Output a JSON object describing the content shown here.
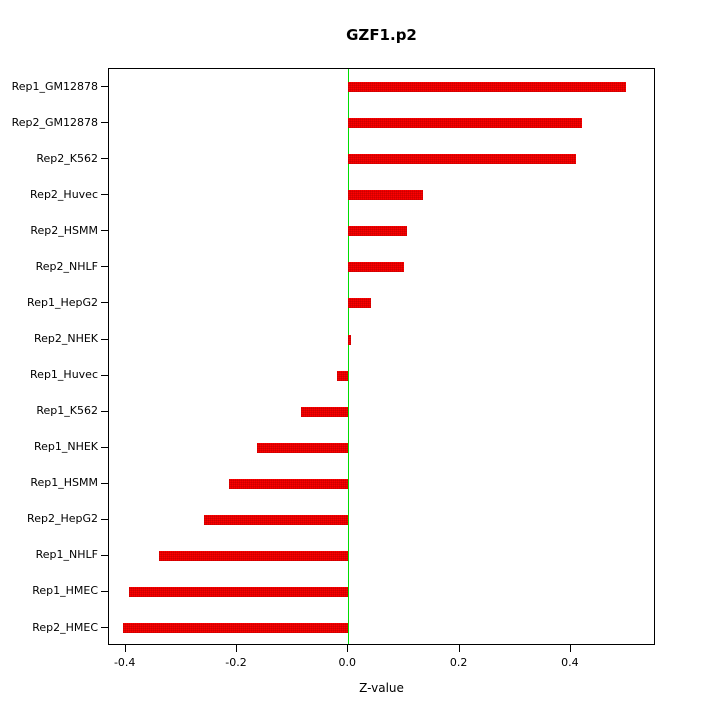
{
  "chart_data": {
    "type": "bar",
    "orientation": "horizontal",
    "title": "GZF1.p2",
    "xlabel": "Z-value",
    "ylabel": "",
    "categories": [
      "Rep1_GM12878",
      "Rep2_GM12878",
      "Rep2_K562",
      "Rep2_Huvec",
      "Rep2_HSMM",
      "Rep2_NHLF",
      "Rep1_HepG2",
      "Rep2_NHEK",
      "Rep1_Huvec",
      "Rep1_K562",
      "Rep1_NHEK",
      "Rep1_HSMM",
      "Rep2_HepG2",
      "Rep1_NHLF",
      "Rep1_HMEC",
      "Rep2_HMEC"
    ],
    "values": [
      0.5,
      0.42,
      0.41,
      0.135,
      0.105,
      0.1,
      0.04,
      0.005,
      -0.02,
      -0.085,
      -0.165,
      -0.215,
      -0.26,
      -0.34,
      -0.395,
      -0.405
    ],
    "xlim": [
      -0.43,
      0.553
    ],
    "x_ticks": [
      -0.4,
      -0.2,
      0.0,
      0.2,
      0.4
    ],
    "x_tick_labels": [
      "-0.4",
      "-0.2",
      "0.0",
      "0.2",
      "0.4"
    ],
    "bar_color": "#ff0000",
    "zero_line_color": "#00dd00",
    "grid": false,
    "legend_position": "none"
  }
}
